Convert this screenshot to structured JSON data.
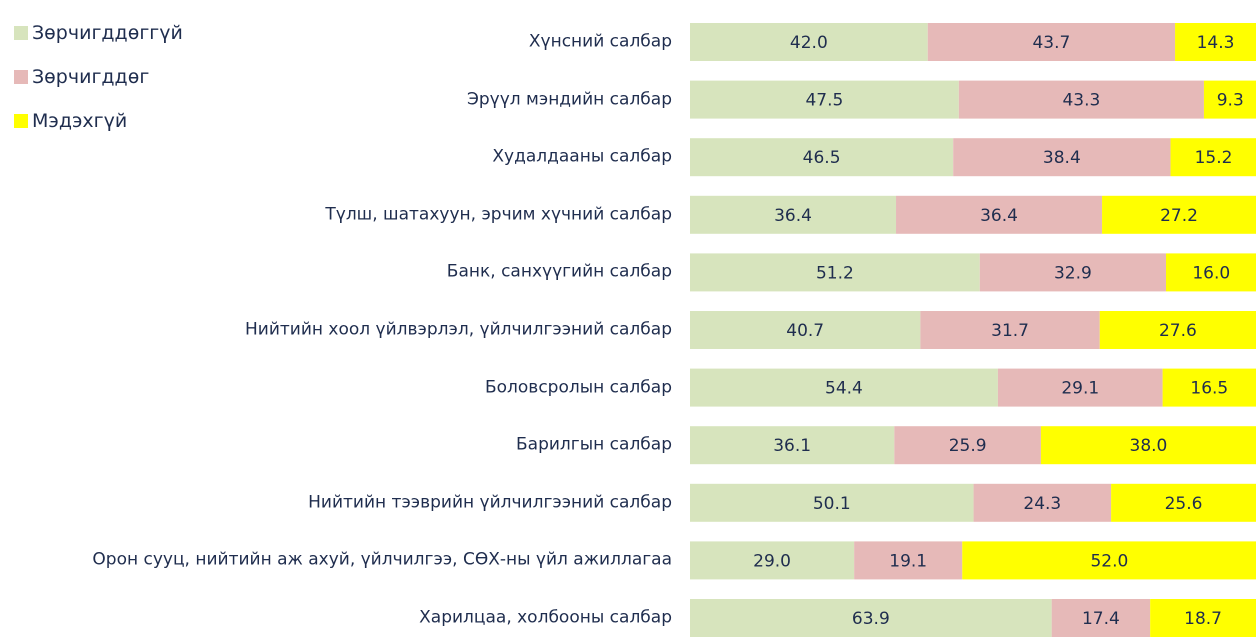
{
  "chart_data": {
    "type": "bar",
    "orientation": "horizontal",
    "stacked": true,
    "categories": [
      "Хүнсний салбар",
      "Эрүүл мэндийн салбар",
      "Худалдааны салбар",
      "Түлш, шатахуун, эрчим хүчний салбар",
      "Банк, санхүүгийн салбар",
      "Нийтийн хоол үйлвэрлэл, үйлчилгээний салбар",
      "Боловсролын салбар",
      "Барилгын салбар",
      "Нийтийн тээврийн үйлчилгээний салбар",
      "Орон сууц, нийтийн аж ахуй, үйлчилгээ, СӨХ-ны үйл ажиллагаа",
      "Харилцаа, холбооны салбар"
    ],
    "series": [
      {
        "name": "Зөрчигддөггүй",
        "color": "#d7e4bd",
        "values": [
          42.0,
          47.5,
          46.5,
          36.4,
          51.2,
          40.7,
          54.4,
          36.1,
          50.1,
          29.0,
          63.9
        ],
        "value_labels": [
          "42.0",
          "47.5",
          "46.5",
          "36.4",
          "51.2",
          "40.7",
          "54.4",
          "36.1",
          "50.1",
          "29.0",
          "63.9"
        ]
      },
      {
        "name": "Зөрчигддөг",
        "color": "#e6b9b8",
        "values": [
          43.7,
          43.3,
          38.4,
          36.4,
          32.9,
          31.7,
          29.1,
          25.9,
          24.3,
          19.1,
          17.4
        ],
        "value_labels": [
          "43.7",
          "43.3",
          "38.4",
          "36.4",
          "32.9",
          "31.7",
          "29.1",
          "25.9",
          "24.3",
          "19.1",
          "17.4"
        ]
      },
      {
        "name": "Мэдэхгүй",
        "color": "#ffff00",
        "values": [
          14.3,
          9.3,
          15.2,
          27.2,
          16.0,
          27.6,
          16.5,
          38.0,
          25.6,
          52.0,
          18.7
        ],
        "value_labels": [
          "14.3",
          "9.3",
          "15.2",
          "27.2",
          "16.0",
          "27.6",
          "16.5",
          "38.0",
          "25.6",
          "52.0",
          "18.7"
        ]
      }
    ],
    "xlim": [
      0,
      100
    ],
    "legend": "top-left"
  }
}
